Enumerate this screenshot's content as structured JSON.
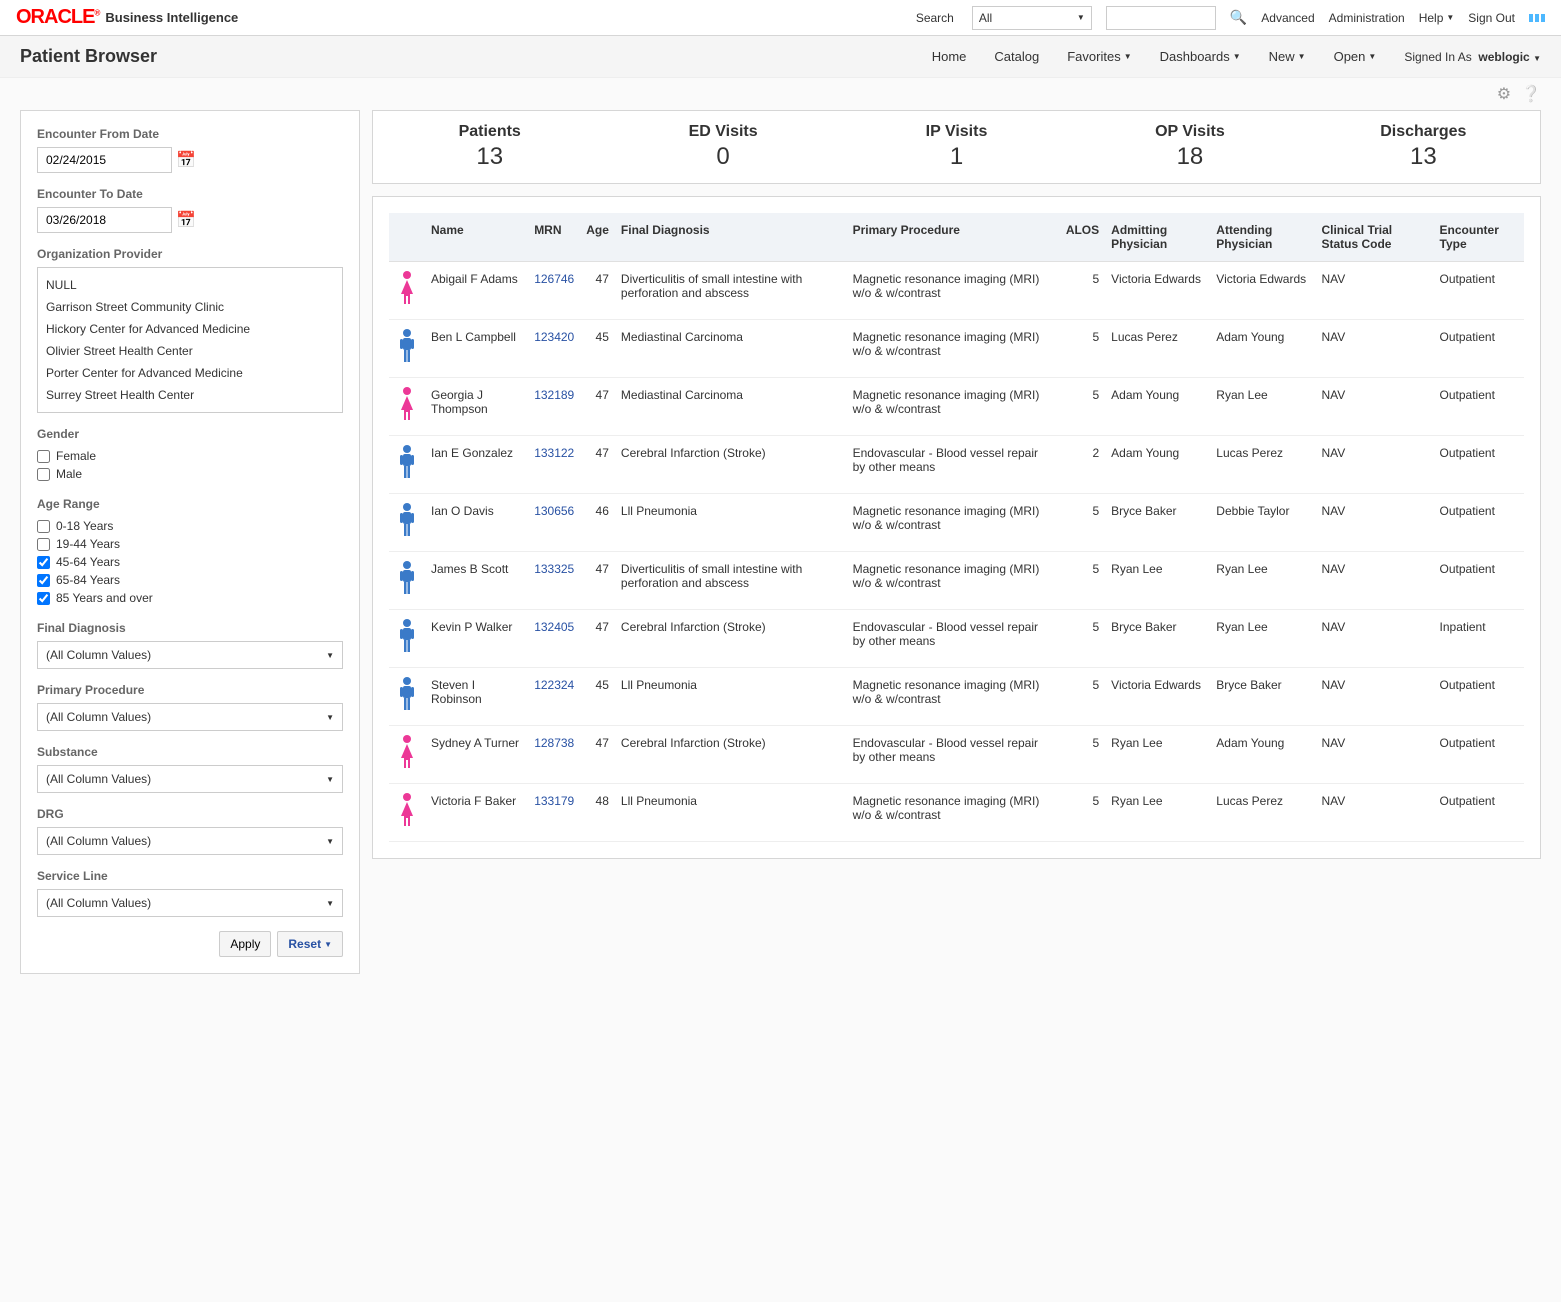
{
  "top": {
    "logo_text": "ORACLE",
    "bi_label": "Business Intelligence",
    "search_label": "Search",
    "search_scope": "All",
    "search_value": "",
    "advanced": "Advanced",
    "administration": "Administration",
    "help": "Help",
    "signout": "Sign Out"
  },
  "nav": {
    "title": "Patient Browser",
    "home": "Home",
    "catalog": "Catalog",
    "favorites": "Favorites",
    "dashboards": "Dashboards",
    "new": "New",
    "open": "Open",
    "signed_in_as": "Signed In As",
    "user": "weblogic"
  },
  "filters": {
    "from_label": "Encounter From Date",
    "from_value": "02/24/2015",
    "to_label": "Encounter To Date",
    "to_value": "03/26/2018",
    "org_label": "Organization Provider",
    "orgs": [
      "NULL",
      "Garrison Street Community Clinic",
      "Hickory Center for Advanced Medicine",
      "Olivier Street Health Center",
      "Porter Center for Advanced Medicine",
      "Surrey Street Health Center"
    ],
    "gender_label": "Gender",
    "genders": [
      {
        "label": "Female",
        "checked": false
      },
      {
        "label": "Male",
        "checked": false
      }
    ],
    "age_label": "Age Range",
    "ages": [
      {
        "label": "0-18 Years",
        "checked": false
      },
      {
        "label": "19-44 Years",
        "checked": false
      },
      {
        "label": "45-64 Years",
        "checked": true
      },
      {
        "label": "65-84 Years",
        "checked": true
      },
      {
        "label": "85 Years and over",
        "checked": true
      }
    ],
    "final_dx_label": "Final Diagnosis",
    "primary_proc_label": "Primary Procedure",
    "substance_label": "Substance",
    "drg_label": "DRG",
    "service_line_label": "Service Line",
    "all_values": "(All Column Values)",
    "apply": "Apply",
    "reset": "Reset"
  },
  "stats": [
    {
      "label": "Patients",
      "value": "13"
    },
    {
      "label": "ED Visits",
      "value": "0"
    },
    {
      "label": "IP Visits",
      "value": "1"
    },
    {
      "label": "OP Visits",
      "value": "18"
    },
    {
      "label": "Discharges",
      "value": "13"
    }
  ],
  "columns": [
    "",
    "Name",
    "MRN",
    "Age",
    "Final Diagnosis",
    "Primary Procedure",
    "ALOS",
    "Admitting Physician",
    "Attending Physician",
    "Clinical Trial Status Code",
    "Encounter Type"
  ],
  "colors": {
    "female": "#ec3897",
    "male": "#3a7ac8"
  },
  "rows": [
    {
      "gender": "F",
      "name": "Abigail F Adams",
      "mrn": "126746",
      "age": "47",
      "dx": "Diverticulitis of small intestine with perforation and abscess",
      "proc": "Magnetic resonance imaging (MRI) w/o & w/contrast",
      "alos": "5",
      "admit": "Victoria Edwards",
      "attend": "Victoria Edwards",
      "trial": "NAV",
      "enc": "Outpatient"
    },
    {
      "gender": "M",
      "name": "Ben L Campbell",
      "mrn": "123420",
      "age": "45",
      "dx": "Mediastinal Carcinoma",
      "proc": "Magnetic resonance imaging (MRI) w/o & w/contrast",
      "alos": "5",
      "admit": "Lucas Perez",
      "attend": "Adam Young",
      "trial": "NAV",
      "enc": "Outpatient"
    },
    {
      "gender": "F",
      "name": "Georgia J Thompson",
      "mrn": "132189",
      "age": "47",
      "dx": "Mediastinal Carcinoma",
      "proc": "Magnetic resonance imaging (MRI) w/o & w/contrast",
      "alos": "5",
      "admit": "Adam Young",
      "attend": "Ryan Lee",
      "trial": "NAV",
      "enc": "Outpatient"
    },
    {
      "gender": "M",
      "name": "Ian E Gonzalez",
      "mrn": "133122",
      "age": "47",
      "dx": "Cerebral Infarction (Stroke)",
      "proc": "Endovascular - Blood vessel repair by other means",
      "alos": "2",
      "admit": "Adam Young",
      "attend": "Lucas Perez",
      "trial": "NAV",
      "enc": "Outpatient"
    },
    {
      "gender": "M",
      "name": "Ian O Davis",
      "mrn": "130656",
      "age": "46",
      "dx": "Lll Pneumonia",
      "proc": "Magnetic resonance imaging (MRI) w/o & w/contrast",
      "alos": "5",
      "admit": "Bryce Baker",
      "attend": "Debbie Taylor",
      "trial": "NAV",
      "enc": "Outpatient"
    },
    {
      "gender": "M",
      "name": "James B Scott",
      "mrn": "133325",
      "age": "47",
      "dx": "Diverticulitis of small intestine with perforation and abscess",
      "proc": "Magnetic resonance imaging (MRI) w/o & w/contrast",
      "alos": "5",
      "admit": "Ryan Lee",
      "attend": "Ryan Lee",
      "trial": "NAV",
      "enc": "Outpatient"
    },
    {
      "gender": "M",
      "name": "Kevin P Walker",
      "mrn": "132405",
      "age": "47",
      "dx": "Cerebral Infarction (Stroke)",
      "proc": "Endovascular - Blood vessel repair by other means",
      "alos": "5",
      "admit": "Bryce Baker",
      "attend": "Ryan Lee",
      "trial": "NAV",
      "enc": "Inpatient"
    },
    {
      "gender": "M",
      "name": "Steven I Robinson",
      "mrn": "122324",
      "age": "45",
      "dx": "Lll Pneumonia",
      "proc": "Magnetic resonance imaging (MRI) w/o & w/contrast",
      "alos": "5",
      "admit": "Victoria Edwards",
      "attend": "Bryce Baker",
      "trial": "NAV",
      "enc": "Outpatient"
    },
    {
      "gender": "F",
      "name": "Sydney A Turner",
      "mrn": "128738",
      "age": "47",
      "dx": "Cerebral Infarction (Stroke)",
      "proc": "Endovascular - Blood vessel repair by other means",
      "alos": "5",
      "admit": "Ryan Lee",
      "attend": "Adam Young",
      "trial": "NAV",
      "enc": "Outpatient"
    },
    {
      "gender": "F",
      "name": "Victoria F Baker",
      "mrn": "133179",
      "age": "48",
      "dx": "Lll Pneumonia",
      "proc": "Magnetic resonance imaging (MRI) w/o & w/contrast",
      "alos": "5",
      "admit": "Ryan Lee",
      "attend": "Lucas Perez",
      "trial": "NAV",
      "enc": "Outpatient"
    }
  ]
}
